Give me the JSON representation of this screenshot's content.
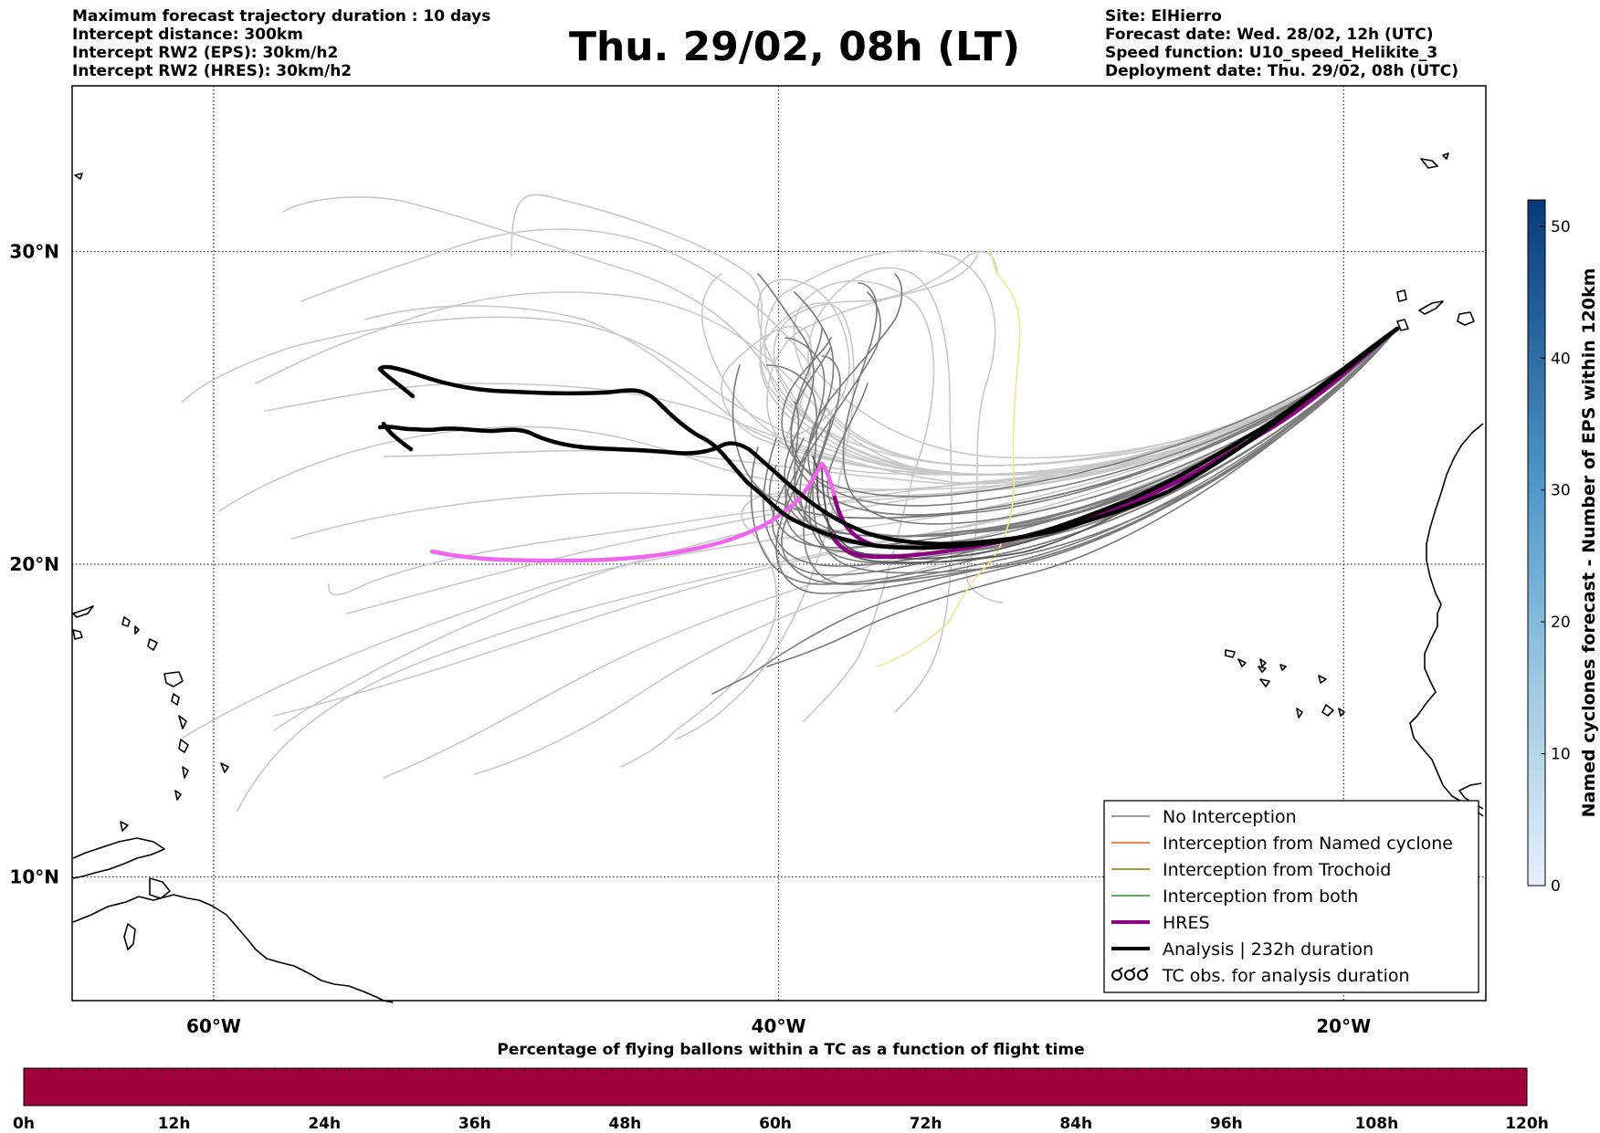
{
  "header": {
    "left": [
      "Maximum forecast trajectory duration : 10 days",
      "Intercept distance: 300km",
      "Intercept RW2 (EPS):  30km/h2",
      "Intercept RW2 (HRES): 30km/h2"
    ],
    "title": "Thu. 29/02, 08h (LT)",
    "right": [
      "Site: ElHierro",
      "Forecast date: Wed. 28/02, 12h (UTC)",
      "Speed function: U10_speed_Helikite_3",
      "Deployment date: Thu. 29/02, 08h (UTC)"
    ]
  },
  "map": {
    "lon_range": [
      -65,
      15
    ],
    "lat_range": [
      5,
      35
    ],
    "lon_ticks": [
      {
        "lon": -60,
        "label": "60°W"
      },
      {
        "lon": -40,
        "label": "40°W"
      },
      {
        "lon": -20,
        "label": "20°W"
      }
    ],
    "lat_ticks": [
      {
        "lat": 30,
        "label": "30°N"
      },
      {
        "lat": 20,
        "label": "20°N"
      },
      {
        "lat": 10,
        "label": "10°N"
      }
    ],
    "colors": {
      "no_interception": "#7a7a7a",
      "light_tracks": "#c8c8c8",
      "named_cyclone": "#e8601c",
      "trochoid": "#808000",
      "both": "#2e8b2e",
      "hres": "#8b0080",
      "hres_light": "#ee66ee",
      "analysis": "#000000",
      "yellow_track": "#f0e68c"
    }
  },
  "legend": {
    "items": [
      {
        "label": "No Interception",
        "color": "#7a7a7a",
        "width": 1.5
      },
      {
        "label": "Interception from Named cyclone",
        "color": "#e8601c",
        "width": 1.5
      },
      {
        "label": "Interception from Trochoid",
        "color": "#808000",
        "width": 1.5
      },
      {
        "label": "Interception from both",
        "color": "#2e8b2e",
        "width": 1.5
      },
      {
        "label": "HRES",
        "color": "#8b0080",
        "width": 4
      },
      {
        "label": "Analysis | 232h duration",
        "color": "#000000",
        "width": 4
      },
      {
        "label": "TC obs. for analysis duration",
        "color": "#000000",
        "width": 0
      }
    ]
  },
  "colorbar_right": {
    "label": "Named cyclones forecast - Number of EPS within 120km",
    "ticks": [
      0,
      10,
      20,
      30,
      40,
      50
    ],
    "range": [
      0,
      52
    ]
  },
  "colorbar_bottom": {
    "title": "Percentage of flying ballons within a TC as a function of flight time",
    "ticks": [
      "0h",
      "12h",
      "24h",
      "36h",
      "48h",
      "60h",
      "72h",
      "84h",
      "96h",
      "108h",
      "120h"
    ],
    "color": "#a0003c"
  }
}
